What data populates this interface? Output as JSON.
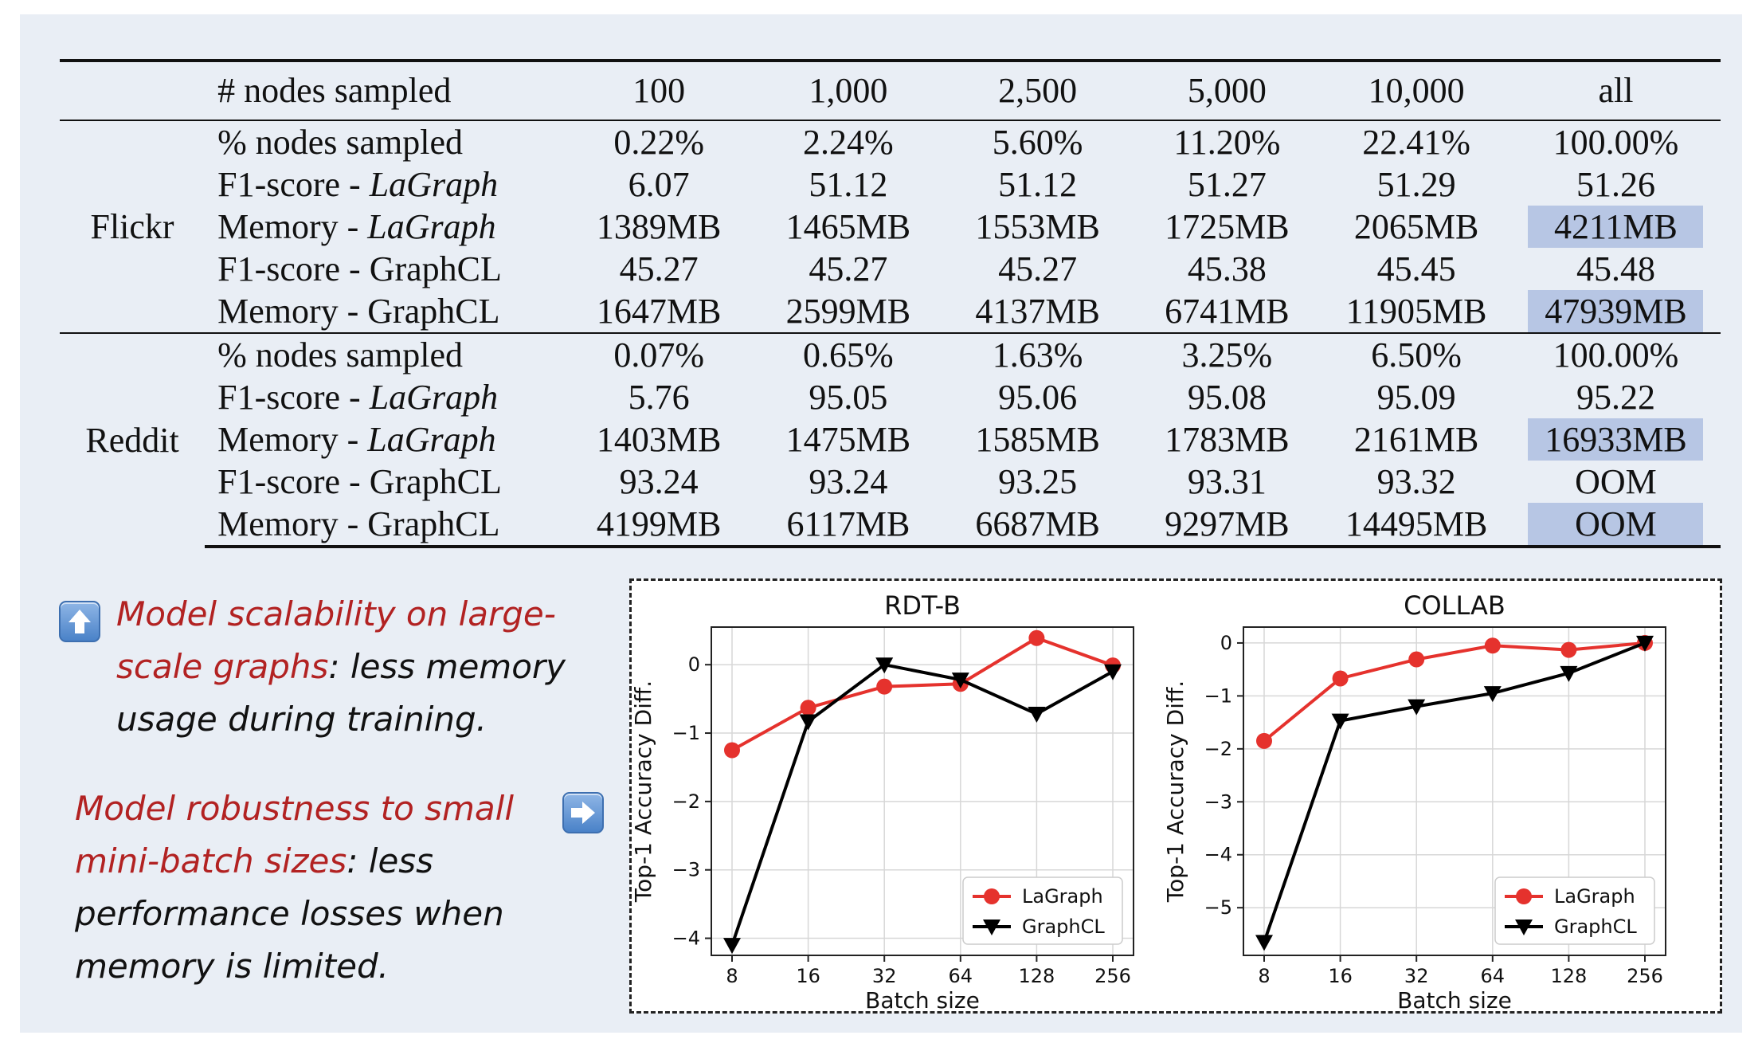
{
  "table": {
    "header": [
      "# nodes sampled",
      "100",
      "1,000",
      "2,500",
      "5,000",
      "10,000",
      "all"
    ],
    "groups": [
      {
        "dataset": "Flickr",
        "rows": [
          {
            "metric": "% nodes sampled",
            "method": "",
            "values": [
              "0.22%",
              "2.24%",
              "5.60%",
              "11.20%",
              "22.41%",
              "100.00%"
            ],
            "highlight_last": false
          },
          {
            "metric": "F1-score - ",
            "method": "LaGraph",
            "values": [
              "6.07",
              "51.12",
              "51.12",
              "51.27",
              "51.29",
              "51.26"
            ],
            "highlight_last": false
          },
          {
            "metric": "Memory - ",
            "method": "LaGraph",
            "values": [
              "1389MB",
              "1465MB",
              "1553MB",
              "1725MB",
              "2065MB",
              "4211MB"
            ],
            "highlight_last": true
          },
          {
            "metric": "F1-score - GraphCL",
            "method": "",
            "values": [
              "45.27",
              "45.27",
              "45.27",
              "45.38",
              "45.45",
              "45.48"
            ],
            "highlight_last": false
          },
          {
            "metric": "Memory - GraphCL",
            "method": "",
            "values": [
              "1647MB",
              "2599MB",
              "4137MB",
              "6741MB",
              "11905MB",
              "47939MB"
            ],
            "highlight_last": true
          }
        ]
      },
      {
        "dataset": "Reddit",
        "rows": [
          {
            "metric": "% nodes sampled",
            "method": "",
            "values": [
              "0.07%",
              "0.65%",
              "1.63%",
              "3.25%",
              "6.50%",
              "100.00%"
            ],
            "highlight_last": false
          },
          {
            "metric": "F1-score - ",
            "method": "LaGraph",
            "values": [
              "5.76",
              "95.05",
              "95.06",
              "95.08",
              "95.09",
              "95.22"
            ],
            "highlight_last": false
          },
          {
            "metric": "Memory - ",
            "method": "LaGraph",
            "values": [
              "1403MB",
              "1475MB",
              "1585MB",
              "1783MB",
              "2161MB",
              "16933MB"
            ],
            "highlight_last": true
          },
          {
            "metric": "F1-score - GraphCL",
            "method": "",
            "values": [
              "93.24",
              "93.24",
              "93.25",
              "93.31",
              "93.32",
              "OOM"
            ],
            "highlight_last": false
          },
          {
            "metric": "Memory - GraphCL",
            "method": "",
            "values": [
              "4199MB",
              "6117MB",
              "6687MB",
              "9297MB",
              "14495MB",
              "OOM"
            ],
            "highlight_last": true
          }
        ]
      }
    ],
    "highlight_color": "#b7c6e4"
  },
  "notes": {
    "scalability": {
      "red_line1": "Model scalability on large-",
      "red_line2": "scale graphs",
      "black_line2": ": less memory",
      "black_line3": "usage during training.",
      "icon": "up-arrow-icon"
    },
    "robustness": {
      "red_line1": "Model robustness to small",
      "red_line2": "mini-batch sizes",
      "black_line2": ": less",
      "black_line3": "performance losses when",
      "black_line4": "memory is limited.",
      "icon": "right-arrow-icon"
    },
    "accent_red": "#b22222"
  },
  "chart_data": [
    {
      "type": "line",
      "title": "RDT-B",
      "xlabel": "Batch size",
      "ylabel": "Top-1 Accuracy Diff.",
      "x": [
        "8",
        "16",
        "32",
        "64",
        "128",
        "256"
      ],
      "ylim": [
        -4.25,
        0.55
      ],
      "yticks": [
        "0",
        "−1",
        "−2",
        "−3",
        "−4"
      ],
      "ytick_values": [
        0,
        -1,
        -2,
        -3,
        -4
      ],
      "grid": true,
      "legend": "bottom-right",
      "series": [
        {
          "name": "LaGraph",
          "color": "#e5322d",
          "marker": "circle",
          "values": [
            -1.25,
            -0.63,
            -0.32,
            -0.28,
            0.39,
            -0.01
          ]
        },
        {
          "name": "GraphCL",
          "color": "#000000",
          "marker": "triangle-down",
          "values": [
            -4.1,
            -0.83,
            0.0,
            -0.22,
            -0.72,
            -0.1
          ]
        }
      ]
    },
    {
      "type": "line",
      "title": "COLLAB",
      "xlabel": "Batch size",
      "ylabel": "Top-1 Accuracy Diff.",
      "x": [
        "8",
        "16",
        "32",
        "64",
        "128",
        "256"
      ],
      "ylim": [
        -5.9,
        0.3
      ],
      "yticks": [
        "0",
        "−1",
        "−2",
        "−3",
        "−4",
        "−5"
      ],
      "ytick_values": [
        0,
        -1,
        -2,
        -3,
        -4,
        -5
      ],
      "grid": true,
      "legend": "bottom-right",
      "series": [
        {
          "name": "LaGraph",
          "color": "#e5322d",
          "marker": "circle",
          "values": [
            -1.85,
            -0.67,
            -0.31,
            -0.05,
            -0.13,
            0.0
          ]
        },
        {
          "name": "GraphCL",
          "color": "#000000",
          "marker": "triangle-down",
          "values": [
            -5.65,
            -1.47,
            -1.2,
            -0.95,
            -0.57,
            0.0
          ]
        }
      ]
    }
  ]
}
